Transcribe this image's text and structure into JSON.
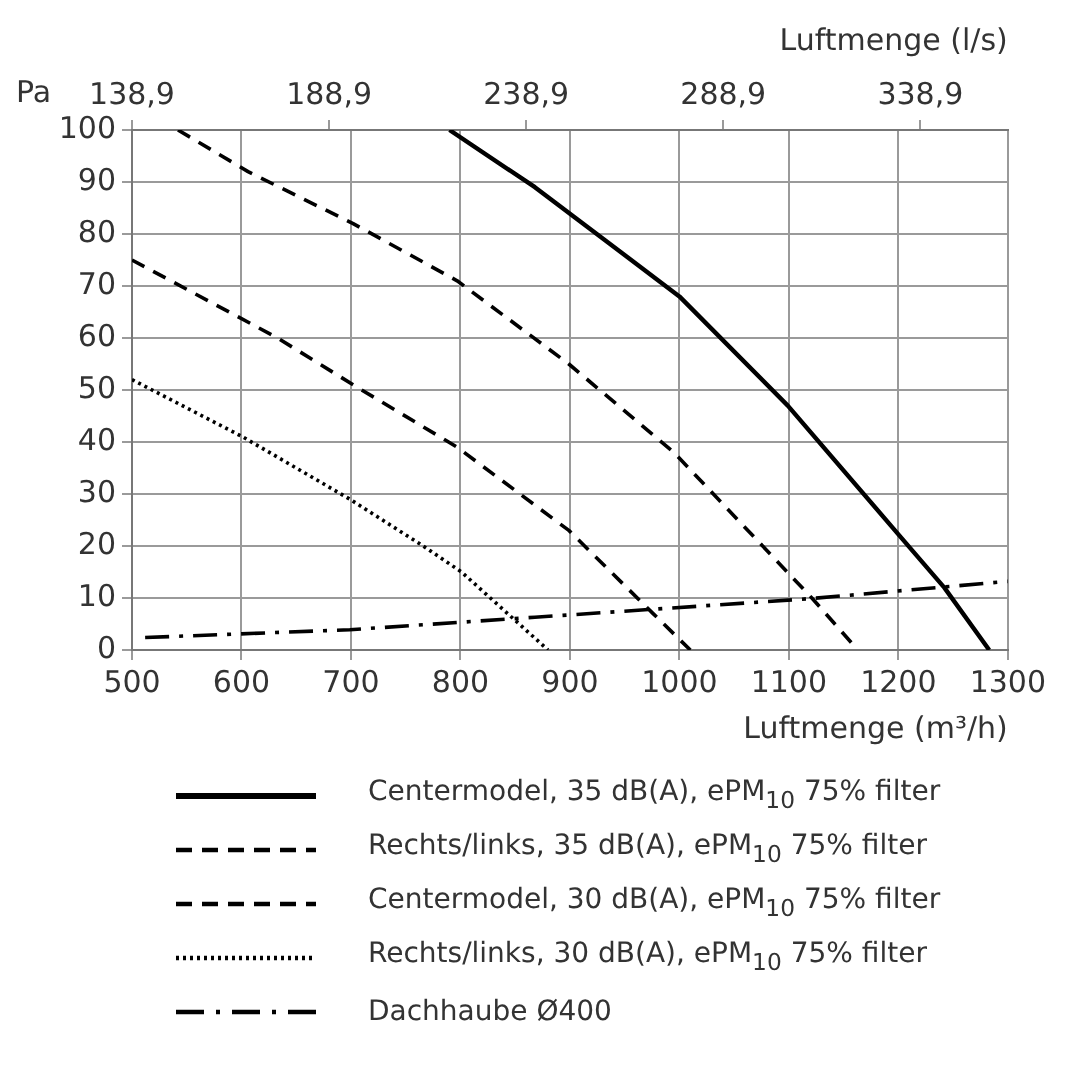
{
  "chart_data": {
    "type": "line",
    "xlabel": "Luftmenge (m³/h)",
    "x2label": "Luftmenge (l/s)",
    "ylabel": "Pa",
    "xlim": [
      500,
      1300
    ],
    "xticks": [
      500,
      600,
      700,
      800,
      900,
      1000,
      1100,
      1200,
      1300
    ],
    "x2lim": [
      138.9,
      361.1
    ],
    "x2ticks": [
      {
        "value": 138.9,
        "label": "138,9"
      },
      {
        "value": 188.9,
        "label": "188,9"
      },
      {
        "value": 238.9,
        "label": "238,9"
      },
      {
        "value": 288.9,
        "label": "288,9"
      },
      {
        "value": 338.9,
        "label": "338,9"
      }
    ],
    "ylim": [
      0,
      100
    ],
    "yticks": [
      0,
      10,
      20,
      30,
      40,
      50,
      60,
      70,
      80,
      90,
      100
    ],
    "grid": true,
    "legend": "bottom",
    "marker": "none",
    "series": [
      {
        "name": "Centermodel, 35 dB(A), ePM$_{10}$ 75% filter",
        "color": "#000000",
        "line_style": "solid",
        "x": [
          790,
          868,
          1000,
          1099,
          1201,
          1242,
          1283
        ],
        "values": [
          100,
          89,
          68,
          47,
          22,
          12,
          0
        ]
      },
      {
        "name": "Rechts/links, 35 dB(A), ePM$_{10}$ 75% filter",
        "color": "#000000",
        "line_style": "dashed",
        "x": [
          542,
          606,
          702,
          797,
          899,
          995,
          1121,
          1163
        ],
        "values": [
          100,
          92,
          82,
          71,
          55,
          38,
          10,
          0
        ]
      },
      {
        "name": "Centermodel, 30 dB(A), ePM$_{10}$ 75% filter",
        "color": "#000000",
        "line_style": "dashed",
        "x": [
          500,
          633,
          702,
          797,
          899,
          976,
          1010
        ],
        "values": [
          75,
          60,
          51,
          39,
          23,
          7,
          0
        ]
      },
      {
        "name": "Rechts/links, 30 dB(A), ePM$_{10}$ 75% filter",
        "color": "#000000",
        "line_style": "dotted",
        "x": [
          500,
          601,
          699,
          766,
          801,
          880
        ],
        "values": [
          52,
          41,
          29,
          20,
          15,
          0
        ]
      },
      {
        "name": "Dachhaube Ø400",
        "color": "#000000",
        "line_style": "dashdot",
        "x": [
          512,
          699,
          868,
          1121,
          1300
        ],
        "values": [
          2.4,
          3.9,
          6.3,
          9.9,
          13.2
        ]
      }
    ]
  }
}
